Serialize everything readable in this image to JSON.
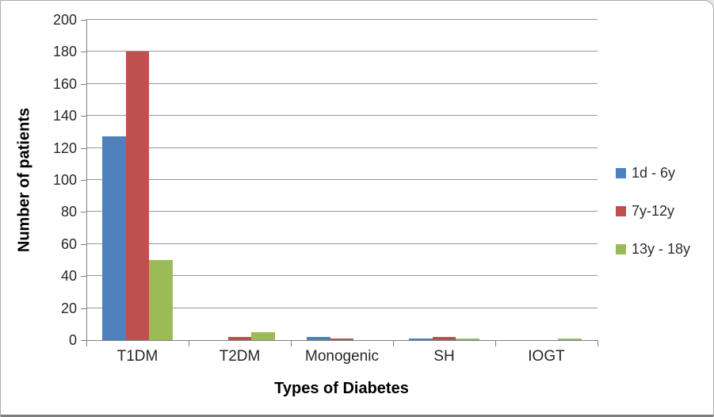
{
  "chart_data": {
    "type": "bar",
    "title": "",
    "xlabel": "Types of Diabetes",
    "ylabel": "Number of patients",
    "categories": [
      "T1DM",
      "T2DM",
      "Monogenic",
      "SH",
      "IOGT"
    ],
    "series": [
      {
        "name": "1d - 6y",
        "color": "#4F81BD",
        "values": [
          127,
          0,
          2,
          1,
          0
        ]
      },
      {
        "name": "7y-12y",
        "color": "#C0504D",
        "values": [
          180,
          2,
          1,
          2,
          0
        ]
      },
      {
        "name": "13y - 18y",
        "color": "#9BBB59",
        "values": [
          50,
          5,
          0,
          1,
          1
        ]
      }
    ],
    "ylim": [
      0,
      200
    ],
    "yticks": [
      0,
      20,
      40,
      60,
      80,
      100,
      120,
      140,
      160,
      180,
      200
    ],
    "grid": true,
    "legend_position": "right",
    "gridline_color": "#979797",
    "axis_color": "#7f7f7f"
  }
}
